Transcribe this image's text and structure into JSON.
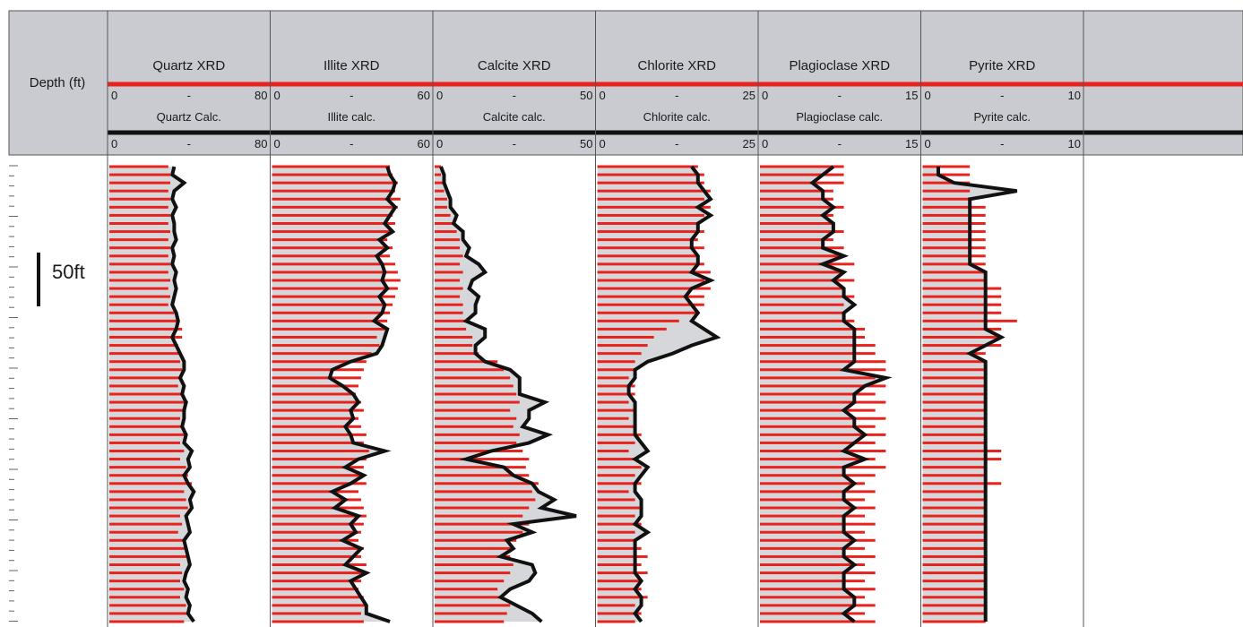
{
  "depth_header": "Depth (ft)",
  "scale_bar_label": "50ft",
  "chart_data": {
    "type": "line",
    "description_kind": "well log tracks",
    "y_axis": {
      "label": "Depth (ft)",
      "direction": "down"
    },
    "tracks": [
      {
        "xrd_label": "Quartz XRD",
        "calc_label": "Quartz Calc.",
        "xrd_min": "0",
        "xrd_max": "80",
        "calc_min": "0",
        "calc_max": "80",
        "range": [
          0,
          80
        ],
        "xrd": [
          30,
          31,
          31,
          30,
          31,
          30,
          31,
          30,
          31,
          30,
          31,
          30,
          31,
          30,
          31,
          30,
          31,
          30,
          33,
          35,
          37,
          37,
          35,
          36,
          36,
          37,
          36,
          35,
          38,
          40,
          39,
          36,
          38,
          39,
          36,
          38,
          36,
          39,
          40,
          42,
          38,
          39,
          40,
          36,
          37,
          35,
          38,
          39,
          40,
          36,
          37,
          36,
          38,
          36,
          39,
          40,
          38
        ],
        "calc": [
          33,
          32,
          38,
          33,
          32,
          34,
          32,
          33,
          33,
          34,
          32,
          33,
          32,
          34,
          33,
          34,
          33,
          32,
          34,
          35,
          34,
          32,
          34,
          36,
          38,
          38,
          36,
          38,
          37,
          39,
          38,
          38,
          37,
          39,
          38,
          42,
          40,
          41,
          38,
          40,
          43,
          41,
          42,
          39,
          40,
          41,
          38,
          39,
          40,
          41,
          39,
          38,
          40,
          39,
          41,
          40,
          43
        ]
      },
      {
        "xrd_label": "Illite XRD",
        "calc_label": "Illite  calc.",
        "xrd_min": "0",
        "xrd_max": "60",
        "calc_min": "0",
        "calc_max": "60",
        "range": [
          0,
          60
        ],
        "xrd": [
          45,
          46,
          48,
          47,
          49,
          48,
          46,
          47,
          45,
          44,
          46,
          45,
          47,
          48,
          49,
          48,
          47,
          46,
          45,
          44,
          43,
          40,
          41,
          38,
          36,
          35,
          34,
          33,
          32,
          34,
          35,
          33,
          34,
          36,
          35,
          37,
          36,
          35,
          34,
          36,
          33,
          34,
          35,
          36,
          35,
          34,
          33,
          35,
          34,
          36,
          35,
          34,
          33,
          35,
          36,
          34,
          35
        ],
        "calc": [
          44,
          45,
          47,
          46,
          44,
          47,
          45,
          43,
          46,
          41,
          44,
          40,
          42,
          43,
          42,
          44,
          41,
          43,
          42,
          39,
          44,
          43,
          42,
          40,
          30,
          23,
          22,
          27,
          31,
          33,
          30,
          31,
          28,
          30,
          31,
          43,
          33,
          28,
          35,
          30,
          23,
          28,
          24,
          33,
          30,
          32,
          27,
          34,
          31,
          28,
          36,
          30,
          32,
          34,
          36,
          36,
          45
        ]
      },
      {
        "xrd_label": "Calcite XRD",
        "calc_label": "Calcite calc.",
        "xrd_min": "0",
        "xrd_max": "50",
        "calc_min": "0",
        "calc_max": "50",
        "range": [
          0,
          50
        ],
        "xrd": [
          2,
          2,
          3,
          3,
          4,
          4,
          5,
          6,
          7,
          8,
          8,
          9,
          8,
          9,
          8,
          9,
          8,
          9,
          9,
          10,
          10,
          12,
          12,
          14,
          20,
          22,
          24,
          25,
          26,
          27,
          24,
          26,
          25,
          27,
          26,
          28,
          30,
          29,
          30,
          33,
          31,
          32,
          30,
          28,
          30,
          28,
          26,
          25,
          24,
          25,
          24,
          22,
          20,
          22,
          24,
          23,
          22
        ],
        "calc": [
          2,
          3,
          3,
          4,
          5,
          5,
          7,
          6,
          9,
          9,
          11,
          10,
          14,
          16,
          12,
          11,
          14,
          13,
          13,
          10,
          16,
          16,
          13,
          13,
          16,
          24,
          27,
          27,
          27,
          35,
          30,
          30,
          28,
          36,
          30,
          18,
          10,
          22,
          25,
          31,
          33,
          38,
          34,
          45,
          25,
          31,
          23,
          25,
          21,
          31,
          32,
          30,
          24,
          21,
          26,
          31,
          34
        ]
      },
      {
        "xrd_label": "Chlorite XRD",
        "calc_label": "Chlorite calc.",
        "xrd_min": "0",
        "xrd_max": "25",
        "calc_min": "0",
        "calc_max": "25",
        "range": [
          0,
          25
        ],
        "xrd": [
          16,
          17,
          17,
          18,
          17,
          18,
          17,
          16,
          17,
          16,
          17,
          16,
          17,
          18,
          17,
          18,
          17,
          17,
          16,
          13,
          11,
          9,
          8,
          7,
          6,
          6,
          5,
          6,
          6,
          5,
          6,
          5,
          6,
          7,
          6,
          5,
          6,
          7,
          6,
          7,
          5,
          6,
          7,
          6,
          7,
          6,
          6,
          7,
          8,
          7,
          8,
          7,
          7,
          8,
          6,
          7,
          6
        ],
        "calc": [
          15,
          16,
          16,
          17,
          18,
          16,
          18,
          16,
          16,
          15,
          15,
          16,
          16,
          15,
          18,
          15,
          14,
          15,
          16,
          15,
          17,
          19,
          15,
          12,
          8,
          6,
          6,
          5,
          5,
          6,
          6,
          6,
          6,
          6,
          7,
          8,
          6,
          8,
          7,
          6,
          6,
          7,
          7,
          7,
          6,
          8,
          6,
          6,
          6,
          6,
          6,
          7,
          6,
          7,
          7,
          6,
          7
        ]
      },
      {
        "xrd_label": "Plagioclase XRD",
        "calc_label": "Plagioclase calc.",
        "xrd_min": "0",
        "xrd_max": "15",
        "calc_min": "0",
        "calc_max": "15",
        "range": [
          0,
          15
        ],
        "xrd": [
          8,
          8,
          8,
          7,
          7,
          8,
          7,
          7,
          8,
          7,
          8,
          8,
          9,
          8,
          9,
          8,
          9,
          8,
          8,
          9,
          10,
          10,
          11,
          11,
          12,
          12,
          11,
          12,
          11,
          12,
          11,
          12,
          11,
          12,
          11,
          12,
          11,
          12,
          11,
          10,
          11,
          10,
          11,
          10,
          11,
          10,
          11,
          10,
          11,
          10,
          11,
          10,
          11,
          10,
          11,
          10,
          11
        ],
        "calc": [
          7,
          6,
          5,
          6,
          6,
          7,
          6,
          7,
          7,
          6,
          6,
          8,
          6,
          8,
          7,
          8,
          8,
          9,
          8,
          8,
          9,
          9,
          9,
          9,
          9,
          8,
          12,
          10,
          9,
          9,
          8,
          9,
          9,
          10,
          9,
          8,
          10,
          8,
          8,
          9,
          8,
          8,
          9,
          8,
          8,
          8,
          9,
          8,
          8,
          9,
          8,
          8,
          8,
          9,
          9,
          8,
          9
        ]
      },
      {
        "xrd_label": "Pyrite XRD",
        "calc_label": "Pyrite calc.",
        "xrd_min": "0",
        "xrd_max": "10",
        "calc_min": "0",
        "calc_max": "10",
        "range": [
          0,
          10
        ],
        "xrd": [
          3,
          3,
          3,
          3,
          3,
          4,
          4,
          4,
          4,
          4,
          4,
          4,
          4,
          4,
          4,
          5,
          5,
          5,
          5,
          6,
          5,
          5,
          5,
          4,
          4,
          4,
          4,
          4,
          4,
          4,
          4,
          4,
          4,
          4,
          4,
          5,
          5,
          4,
          4,
          5,
          4,
          4,
          4,
          4,
          4,
          4,
          4,
          4,
          4,
          4,
          4,
          4,
          4,
          4,
          4,
          4,
          4
        ],
        "calc": [
          1,
          1,
          2,
          6,
          3,
          3,
          3,
          3,
          3,
          3,
          3,
          3,
          3,
          4,
          4,
          4,
          4,
          4,
          4,
          4,
          4,
          5,
          4,
          3,
          4,
          4,
          4,
          4,
          4,
          4,
          4,
          4,
          4,
          4,
          4,
          4,
          4,
          4,
          4,
          4,
          4,
          4,
          4,
          4,
          4,
          4,
          4,
          4,
          4,
          4,
          4,
          4,
          4,
          4,
          4,
          4,
          4
        ]
      }
    ],
    "scale_bar": {
      "label": "50ft",
      "length_ft": 50
    }
  }
}
